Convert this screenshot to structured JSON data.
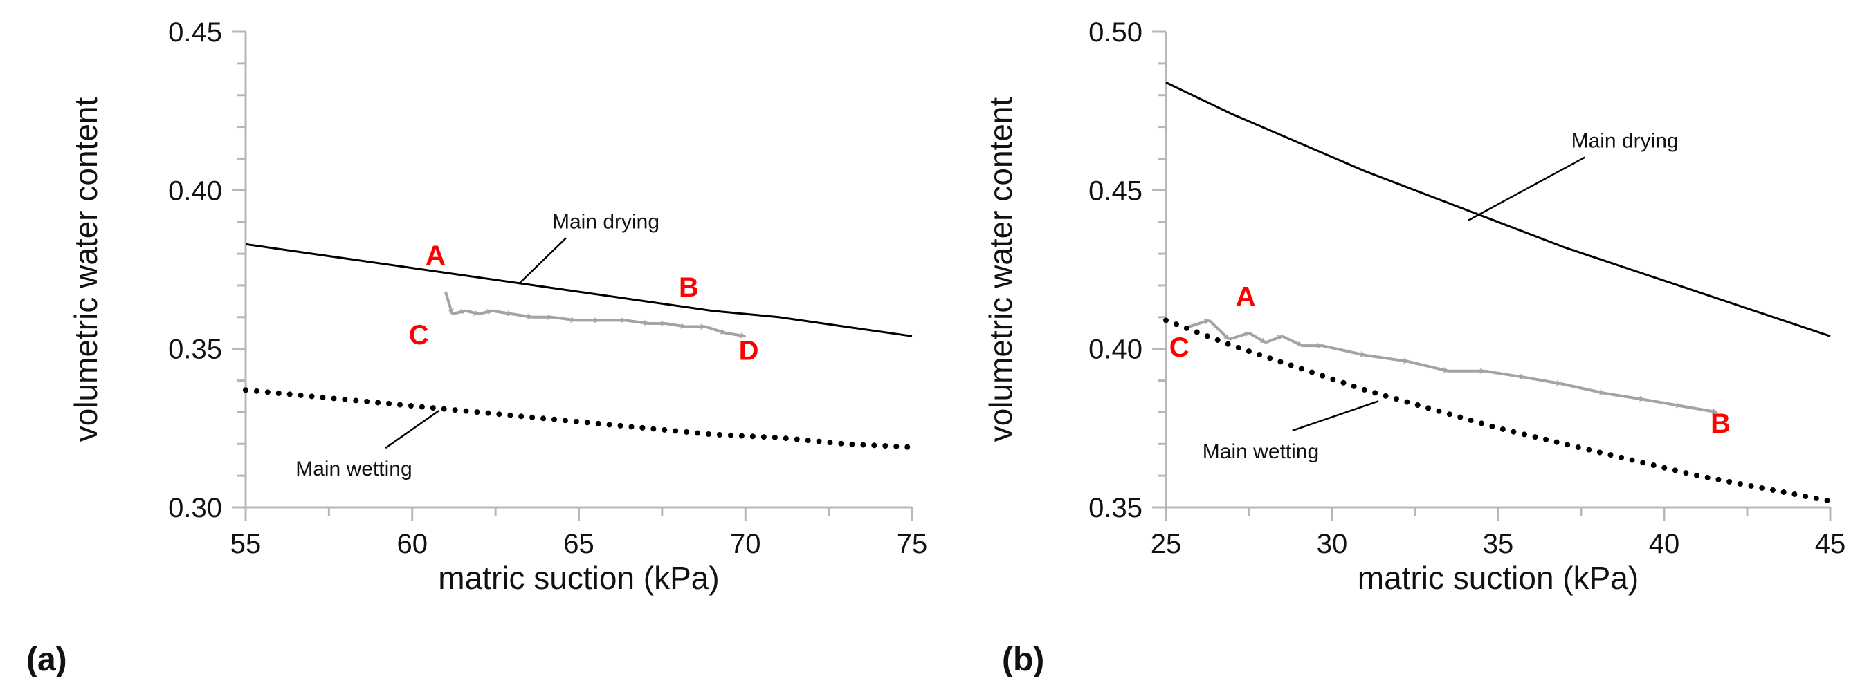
{
  "figure": {
    "panel_a_label": "(a)",
    "panel_b_label": "(b)"
  },
  "colors": {
    "axis": "#b7b7b7",
    "curve": "#000000",
    "path": "#a3a3a3",
    "label_red": "#ff0000"
  },
  "chart_data": [
    {
      "type": "line",
      "panel": "(a)",
      "xlabel": "matric suction (kPa)",
      "ylabel": "volumetric water content",
      "xlim": [
        55,
        75
      ],
      "ylim": [
        0.3,
        0.45
      ],
      "xticks": [
        55,
        60,
        65,
        70,
        75
      ],
      "xtick_labels": [
        "55",
        "60",
        "65",
        "70",
        "75"
      ],
      "yticks": [
        0.3,
        0.35,
        0.4,
        0.45
      ],
      "ytick_labels": [
        "0.30",
        "0.35",
        "0.40",
        "0.45"
      ],
      "series": [
        {
          "name": "Main drying",
          "style": "solid",
          "x": [
            55,
            57,
            59,
            61,
            63,
            65,
            67,
            69,
            71,
            73,
            75
          ],
          "y": [
            0.383,
            0.38,
            0.377,
            0.374,
            0.371,
            0.368,
            0.365,
            0.362,
            0.36,
            0.357,
            0.354
          ]
        },
        {
          "name": "Main wetting",
          "style": "dotted",
          "x": [
            55,
            57,
            59,
            61,
            63,
            65,
            67,
            69,
            71,
            73,
            75
          ],
          "y": [
            0.337,
            0.335,
            0.333,
            0.331,
            0.329,
            0.327,
            0.325,
            0.323,
            0.322,
            0.32,
            0.319
          ]
        },
        {
          "name": "Measured path",
          "style": "arrows",
          "x": [
            61.0,
            61.2,
            61.6,
            62.0,
            62.4,
            63.0,
            63.6,
            64.2,
            64.9,
            65.6,
            66.4,
            67.1,
            67.6,
            68.2,
            68.8,
            69.4,
            70.0
          ],
          "y": [
            0.368,
            0.361,
            0.362,
            0.361,
            0.362,
            0.361,
            0.36,
            0.36,
            0.359,
            0.359,
            0.359,
            0.358,
            0.358,
            0.357,
            0.357,
            0.355,
            0.354
          ]
        }
      ],
      "annotations": [
        {
          "text": "Main drying",
          "x": 64.2,
          "y": 0.388,
          "leader_to": [
            63.2,
            0.3705
          ]
        },
        {
          "text": "Main wetting",
          "x": 56.5,
          "y": 0.31,
          "leader_to": [
            60.8,
            0.3305
          ]
        }
      ],
      "point_labels": [
        {
          "text": "A",
          "x": 60.7,
          "y": 0.3765
        },
        {
          "text": "B",
          "x": 68.3,
          "y": 0.3665
        },
        {
          "text": "C",
          "x": 60.2,
          "y": 0.3515
        },
        {
          "text": "D",
          "x": 70.1,
          "y": 0.3465
        }
      ]
    },
    {
      "type": "line",
      "panel": "(b)",
      "xlabel": "matric suction (kPa)",
      "ylabel": "volumetric water content",
      "xlim": [
        25,
        45
      ],
      "ylim": [
        0.35,
        0.5
      ],
      "xticks": [
        25,
        30,
        35,
        40,
        45
      ],
      "xtick_labels": [
        "25",
        "30",
        "35",
        "40",
        "45"
      ],
      "yticks": [
        0.35,
        0.4,
        0.45,
        0.5
      ],
      "ytick_labels": [
        "0.35",
        "0.40",
        "0.45",
        "0.50"
      ],
      "series": [
        {
          "name": "Main drying",
          "style": "solid",
          "x": [
            25,
            27,
            29,
            31,
            33,
            35,
            37,
            39,
            41,
            43,
            45
          ],
          "y": [
            0.484,
            0.474,
            0.465,
            0.456,
            0.448,
            0.44,
            0.432,
            0.425,
            0.418,
            0.411,
            0.404
          ]
        },
        {
          "name": "Main wetting",
          "style": "dotted",
          "x": [
            25,
            27,
            29,
            31,
            33,
            35,
            37,
            39,
            41,
            43,
            45
          ],
          "y": [
            0.409,
            0.401,
            0.394,
            0.387,
            0.381,
            0.375,
            0.37,
            0.365,
            0.36,
            0.356,
            0.352
          ]
        },
        {
          "name": "Measured path",
          "style": "arrows",
          "x": [
            25.7,
            26.3,
            26.9,
            27.5,
            28.0,
            28.5,
            29.1,
            29.7,
            31.0,
            32.3,
            33.5,
            34.6,
            35.8,
            36.9,
            38.2,
            39.4,
            40.5,
            41.6
          ],
          "y": [
            0.407,
            0.409,
            0.403,
            0.405,
            0.402,
            0.404,
            0.401,
            0.401,
            0.398,
            0.396,
            0.393,
            0.393,
            0.391,
            0.389,
            0.386,
            0.384,
            0.382,
            0.38
          ]
        }
      ],
      "annotations": [
        {
          "text": "Main drying",
          "x": 37.2,
          "y": 0.4635,
          "leader_to": [
            34.1,
            0.4405
          ]
        },
        {
          "text": "Main wetting",
          "x": 26.1,
          "y": 0.3655,
          "leader_to": [
            31.4,
            0.3835
          ]
        }
      ],
      "point_labels": [
        {
          "text": "A",
          "x": 27.4,
          "y": 0.4135
        },
        {
          "text": "B",
          "x": 41.7,
          "y": 0.3735
        },
        {
          "text": "C",
          "x": 25.4,
          "y": 0.3975
        }
      ]
    }
  ]
}
